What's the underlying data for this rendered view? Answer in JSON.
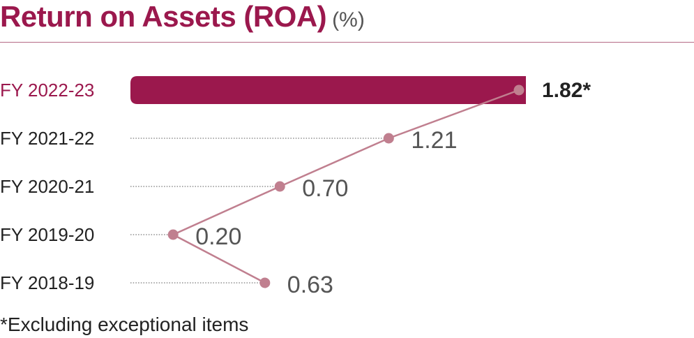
{
  "title": "Return on Assets (ROA)",
  "unit": "(%)",
  "footnote": "*Excluding exceptional items",
  "colors": {
    "accent": "#9b184d",
    "line": "#c07f8f",
    "text": "#222222",
    "value_text": "#555555"
  },
  "chart_data": {
    "type": "bar",
    "orientation": "horizontal",
    "categories": [
      "FY 2022-23",
      "FY 2021-22",
      "FY 2020-21",
      "FY 2019-20",
      "FY 2018-19"
    ],
    "values": [
      1.82,
      1.21,
      0.7,
      0.2,
      0.63
    ],
    "value_labels": [
      "1.82*",
      "1.21",
      "0.70",
      "0.20",
      "0.63"
    ],
    "highlighted_category": "FY 2022-23",
    "overlay": "line",
    "title": "Return on Assets (ROA)",
    "unit": "(%)",
    "xlim": [
      0,
      1.82
    ],
    "grid": false,
    "legend": "none"
  }
}
